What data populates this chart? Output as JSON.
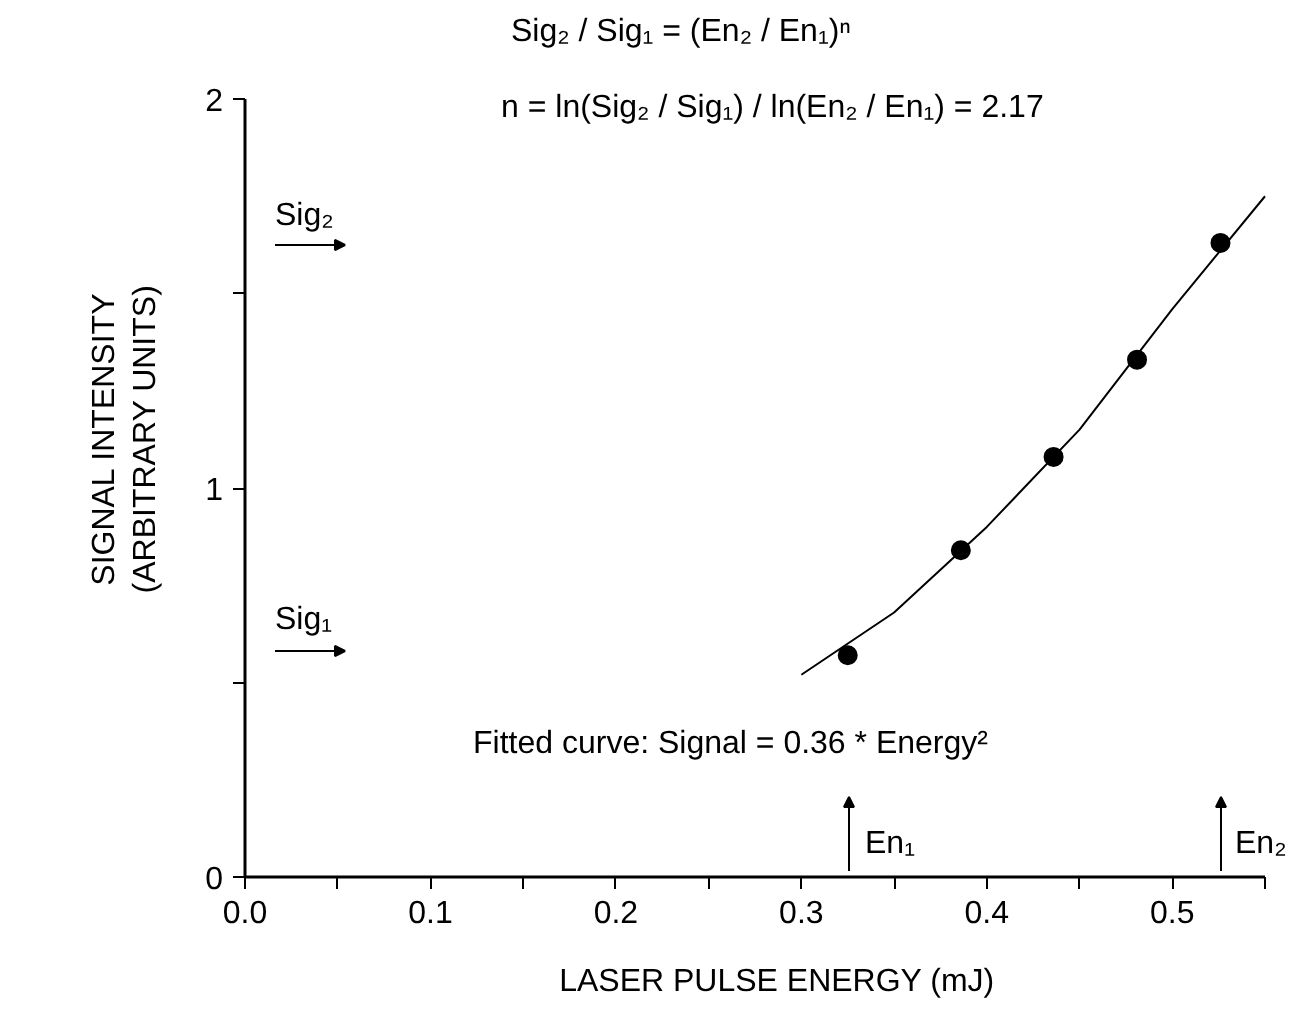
{
  "chart_data": {
    "type": "scatter",
    "xlabel": "LASER PULSE ENERGY (mJ)",
    "ylabel": "SIGNAL INTENSITY\n(ARBITRARY UNITS)",
    "xlim": [
      0,
      0.55
    ],
    "ylim": [
      0,
      2
    ],
    "xticks": [
      {
        "value": 0,
        "label": "0.0"
      },
      {
        "value": 0.05,
        "label": null
      },
      0.1,
      {
        "value": 0.15,
        "label": null
      },
      0.2,
      {
        "value": 0.25,
        "label": null
      },
      0.3,
      {
        "value": 0.35,
        "label": null
      },
      0.4,
      {
        "value": 0.45,
        "label": null
      },
      0.5,
      {
        "value": 0.55,
        "label": null
      }
    ],
    "yticks": [
      0,
      {
        "value": 0.5,
        "label": null
      },
      1,
      {
        "value": 1.5,
        "label": null
      },
      2
    ],
    "grid": false,
    "series": [
      {
        "color": "#000000",
        "marker": "circle",
        "x": [
          0.325,
          0.386,
          0.436,
          0.481,
          0.526
        ],
        "values": [
          0.57,
          0.84,
          1.08,
          1.33,
          1.63
        ]
      },
      {
        "type": "line",
        "color": "#000000",
        "line_style": "solid",
        "x": [
          0.3,
          0.35,
          0.4,
          0.45,
          0.5,
          0.55
        ],
        "values": [
          0.52,
          0.68,
          0.9,
          1.15,
          1.46,
          1.75
        ]
      }
    ],
    "annotations": [
      "Sig₂ / Sig₁ = (En₂ / En₁)ⁿ",
      "n = ln(Sig₂ / Sig₁) / ln(En₂ / En₁) = 2.17",
      "Fitted curve:  Signal = 0.36 * Energy²",
      "Sig₂",
      "Sig₁",
      "En₁",
      "En₂"
    ]
  }
}
